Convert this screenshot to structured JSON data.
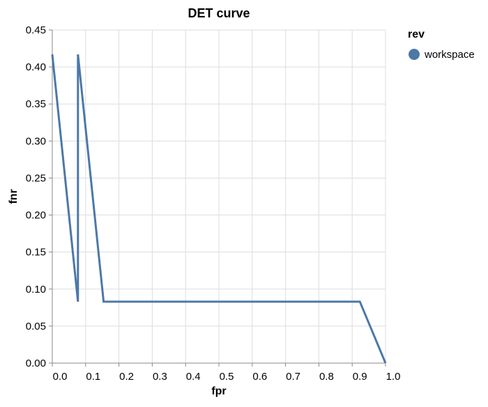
{
  "chart_data": {
    "type": "line",
    "title": "DET curve",
    "xlabel": "fpr",
    "ylabel": "fnr",
    "xlim": [
      0,
      1
    ],
    "ylim": [
      0,
      0.45
    ],
    "xticks": [
      "0.0",
      "0.1",
      "0.2",
      "0.3",
      "0.4",
      "0.5",
      "0.6",
      "0.7",
      "0.8",
      "0.9",
      "1.0"
    ],
    "yticks": [
      "0.00",
      "0.05",
      "0.10",
      "0.15",
      "0.20",
      "0.25",
      "0.30",
      "0.35",
      "0.40",
      "0.45"
    ],
    "grid": true,
    "legend": {
      "title": "rev",
      "position": "right"
    },
    "series": [
      {
        "name": "workspace",
        "color": "#4c78a8",
        "points": [
          [
            0.0,
            0.417
          ],
          [
            0.077,
            0.083
          ],
          [
            0.077,
            0.417
          ],
          [
            0.154,
            0.083
          ],
          [
            0.923,
            0.083
          ],
          [
            1.0,
            0.0
          ]
        ]
      }
    ]
  }
}
